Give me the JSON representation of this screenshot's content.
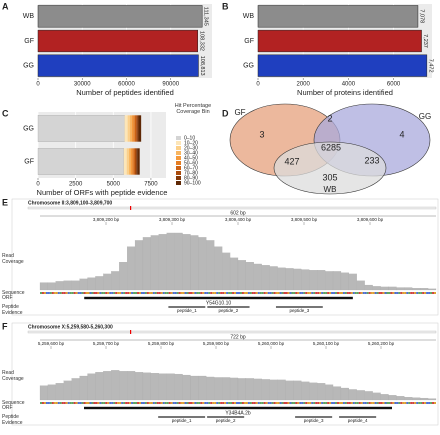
{
  "chart_data": [
    {
      "type": "hbar",
      "panel": "A",
      "categories": [
        "WB",
        "GF",
        "GG"
      ],
      "values": [
        111345,
        108332,
        108813
      ],
      "value_labels": [
        "111,345",
        "108,332",
        "108,813"
      ],
      "colors": [
        "#8c8c8c",
        "#b22222",
        "#1f3fbf"
      ],
      "xlim": [
        0,
        118000
      ],
      "xticks": [
        0,
        30000,
        60000,
        90000
      ],
      "xlabel": "Number of peptides identified",
      "grid": true
    },
    {
      "type": "hbar",
      "panel": "B",
      "categories": [
        "WB",
        "GF",
        "GG"
      ],
      "values": [
        7078,
        7237,
        7472
      ],
      "value_labels": [
        "7,078",
        "7,237",
        "7,472"
      ],
      "colors": [
        "#8c8c8c",
        "#b22222",
        "#1f3fbf"
      ],
      "xlim": [
        0,
        7700
      ],
      "xticks": [
        0,
        2000,
        4000,
        6000
      ],
      "xlabel": "Number of proteins identified",
      "grid": true
    },
    {
      "type": "stacked_hbar",
      "panel": "C",
      "categories": [
        "GG",
        "GF"
      ],
      "xlim": [
        0,
        8500
      ],
      "xticks": [
        0,
        2500,
        5000,
        7500
      ],
      "xlabel": "Number of ORFs with peptide evidence",
      "legend_title": "Hit Percentage Coverage Bin",
      "grid": true,
      "series": [
        {
          "name": "0–10",
          "color": "#d4d4d4",
          "values": [
            5750,
            5700
          ]
        },
        {
          "name": "10–20",
          "color": "#fde6b8",
          "values": [
            200,
            190
          ]
        },
        {
          "name": "20–30",
          "color": "#fcd08a",
          "values": [
            150,
            145
          ]
        },
        {
          "name": "30–40",
          "color": "#f9b660",
          "values": [
            120,
            115
          ]
        },
        {
          "name": "40–50",
          "color": "#f59a3c",
          "values": [
            110,
            105
          ]
        },
        {
          "name": "50–60",
          "color": "#e57d22",
          "values": [
            100,
            95
          ]
        },
        {
          "name": "60–70",
          "color": "#cc6214",
          "values": [
            90,
            88
          ]
        },
        {
          "name": "70–80",
          "color": "#aa4b0c",
          "values": [
            80,
            78
          ]
        },
        {
          "name": "80–90",
          "color": "#843808",
          "values": [
            70,
            68
          ]
        },
        {
          "name": "90–100",
          "color": "#5e2805",
          "values": [
            180,
            170
          ]
        }
      ]
    },
    {
      "type": "venn",
      "panel": "D",
      "sets": [
        {
          "name": "GF",
          "color": "#e6a07c"
        },
        {
          "name": "GG",
          "color": "#a9a9dc"
        },
        {
          "name": "WB",
          "color": "#dcdcdc"
        }
      ],
      "values": [
        3,
        2,
        4,
        427,
        6285,
        233,
        305
      ]
    },
    {
      "type": "genome_track",
      "panel": "E",
      "location": "Chromosome II:3,809,100-3,809,700",
      "length_label": "602 bp",
      "xlim": [
        3809100,
        3809700
      ],
      "xticks": [
        {
          "value": 3809200,
          "label": "3,809,200 bp"
        },
        {
          "value": 3809300,
          "label": "3,809,300 bp"
        },
        {
          "value": 3809400,
          "label": "3,809,400 bp"
        },
        {
          "value": 3809500,
          "label": "3,809,500 bp"
        },
        {
          "value": 3809600,
          "label": "3,809,600 bp"
        }
      ],
      "track_labels": [
        "Read Coverage",
        "Sequence",
        "ORF",
        "Peptide Evidence"
      ],
      "ylim": [
        0,
        100
      ],
      "coverage": [
        12,
        12,
        14,
        15,
        15,
        18,
        20,
        22,
        26,
        30,
        45,
        70,
        80,
        85,
        88,
        90,
        92,
        92,
        90,
        88,
        85,
        80,
        70,
        60,
        52,
        48,
        45,
        42,
        40,
        38,
        36,
        35,
        34,
        33,
        32,
        32,
        30,
        30,
        28,
        26,
        15,
        8,
        6,
        5,
        5,
        4,
        4,
        3,
        3,
        2
      ],
      "gene": "Y54G10.10",
      "orf": [
        3809167,
        3809574
      ],
      "peptides": [
        {
          "name": "peptide_1",
          "start": 3809293,
          "end": 3809352
        },
        {
          "name": "peptide_2",
          "start": 3809352,
          "end": 3809419
        },
        {
          "name": "peptide_3",
          "start": 3809456,
          "end": 3809530
        }
      ]
    },
    {
      "type": "genome_track",
      "panel": "F",
      "location": "Chromosome X:5,259,580-5,260,300",
      "length_label": "722 bp",
      "xlim": [
        5259580,
        5260300
      ],
      "xticks": [
        {
          "value": 5259600,
          "label": "5,259,600 bp"
        },
        {
          "value": 5259700,
          "label": "5,259,700 bp"
        },
        {
          "value": 5259800,
          "label": "5,259,800 bp"
        },
        {
          "value": 5259900,
          "label": "5,259,900 bp"
        },
        {
          "value": 5260000,
          "label": "5,260,000 bp"
        },
        {
          "value": 5260100,
          "label": "5,260,100 bp"
        },
        {
          "value": 5260200,
          "label": "5,260,200 bp"
        }
      ],
      "track_labels": [
        "Read Coverage",
        "Sequence",
        "ORF",
        "Peptide Evidence"
      ],
      "ylim": [
        0,
        100
      ],
      "coverage": [
        30,
        32,
        35,
        40,
        45,
        50,
        55,
        58,
        60,
        62,
        60,
        60,
        58,
        57,
        56,
        55,
        55,
        54,
        52,
        50,
        50,
        48,
        47,
        47,
        46,
        45,
        45,
        44,
        43,
        42,
        42,
        40,
        40,
        38,
        36,
        35,
        32,
        28,
        25,
        22,
        20,
        18,
        15,
        12,
        10,
        8,
        6,
        5,
        4,
        3
      ],
      "gene": "Y34B4A.2b",
      "orf": [
        5259660,
        5260220
      ],
      "peptides": [
        {
          "name": "peptide_1",
          "start": 5259793,
          "end": 5259882
        },
        {
          "name": "peptide_2",
          "start": 5259882,
          "end": 5259953
        },
        {
          "name": "peptide_3",
          "start": 5260042,
          "end": 5260113
        },
        {
          "name": "peptide_4",
          "start": 5260122,
          "end": 5260193
        }
      ]
    }
  ]
}
